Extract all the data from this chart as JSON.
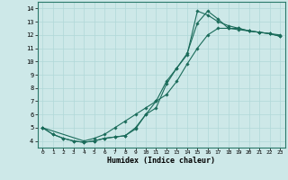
{
  "xlabel": "Humidex (Indice chaleur)",
  "ylabel": "",
  "xlim": [
    -0.5,
    23.5
  ],
  "ylim": [
    3.5,
    14.5
  ],
  "xticks": [
    0,
    1,
    2,
    3,
    4,
    5,
    6,
    7,
    8,
    9,
    10,
    11,
    12,
    13,
    14,
    15,
    16,
    17,
    18,
    19,
    20,
    21,
    22,
    23
  ],
  "yticks": [
    4,
    5,
    6,
    7,
    8,
    9,
    10,
    11,
    12,
    13,
    14
  ],
  "line_color": "#1a6b5a",
  "bg_color": "#cde8e8",
  "grid_color": "#b0d8d8",
  "line1_x": [
    0,
    1,
    2,
    3,
    4,
    5,
    6,
    7,
    8,
    9,
    10,
    11,
    12,
    13,
    14,
    15,
    16,
    17,
    18,
    19,
    20,
    21,
    22,
    23
  ],
  "line1_y": [
    5.0,
    4.5,
    4.2,
    4.0,
    3.9,
    4.0,
    4.2,
    4.3,
    4.4,
    4.9,
    6.0,
    6.5,
    8.3,
    9.5,
    10.5,
    13.8,
    13.5,
    13.0,
    12.7,
    12.5,
    12.3,
    12.2,
    12.1,
    12.0
  ],
  "line2_x": [
    0,
    1,
    2,
    3,
    4,
    5,
    6,
    7,
    8,
    9,
    10,
    11,
    12,
    13,
    14,
    15,
    16,
    17,
    18,
    19,
    20,
    21,
    22,
    23
  ],
  "line2_y": [
    5.0,
    4.5,
    4.2,
    4.0,
    3.9,
    4.0,
    4.2,
    4.3,
    4.4,
    5.0,
    6.0,
    7.0,
    8.5,
    9.5,
    10.6,
    12.9,
    13.8,
    13.2,
    12.5,
    12.5,
    12.3,
    12.2,
    12.1,
    11.9
  ],
  "line3_x": [
    0,
    4,
    5,
    6,
    7,
    8,
    9,
    10,
    11,
    12,
    13,
    14,
    15,
    16,
    17,
    18,
    19,
    20,
    21,
    22,
    23
  ],
  "line3_y": [
    5.0,
    4.0,
    4.2,
    4.5,
    5.0,
    5.5,
    6.0,
    6.5,
    7.0,
    7.5,
    8.5,
    9.8,
    11.0,
    12.0,
    12.5,
    12.5,
    12.4,
    12.3,
    12.2,
    12.1,
    11.9
  ]
}
